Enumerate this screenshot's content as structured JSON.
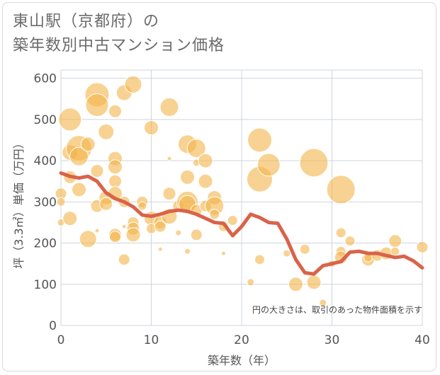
{
  "title": {
    "line1": "東山駅（京都府）の",
    "line2": "築年数別中古マンション価格"
  },
  "chart_data": {
    "type": "scatter",
    "xlabel": "築年数（年）",
    "ylabel": "坪（3.3㎡）単価（万円）",
    "xlim": [
      0,
      40
    ],
    "ylim": [
      0,
      620
    ],
    "x_ticks": [
      0,
      10,
      20,
      30,
      40
    ],
    "y_ticks": [
      0,
      100,
      200,
      300,
      400,
      500,
      600
    ],
    "grid": true,
    "note": "円の大きさは、取引のあった物件面積を示す",
    "colors": {
      "bubble": "#f3b44a",
      "trend": "#d9634a"
    },
    "points": [
      {
        "x": 0,
        "y": 320,
        "s": 8
      },
      {
        "x": 0,
        "y": 300,
        "s": 6
      },
      {
        "x": 0,
        "y": 250,
        "s": 5
      },
      {
        "x": 1,
        "y": 500,
        "s": 16
      },
      {
        "x": 1,
        "y": 420,
        "s": 11
      },
      {
        "x": 1,
        "y": 360,
        "s": 9
      },
      {
        "x": 1,
        "y": 260,
        "s": 10
      },
      {
        "x": 2,
        "y": 430,
        "s": 18
      },
      {
        "x": 2,
        "y": 410,
        "s": 13
      },
      {
        "x": 2,
        "y": 330,
        "s": 10
      },
      {
        "x": 3,
        "y": 440,
        "s": 10
      },
      {
        "x": 3,
        "y": 210,
        "s": 12
      },
      {
        "x": 4,
        "y": 560,
        "s": 17
      },
      {
        "x": 4,
        "y": 535,
        "s": 16
      },
      {
        "x": 4,
        "y": 375,
        "s": 9
      },
      {
        "x": 4,
        "y": 290,
        "s": 9
      },
      {
        "x": 4,
        "y": 230,
        "s": 3
      },
      {
        "x": 5,
        "y": 470,
        "s": 11
      },
      {
        "x": 5,
        "y": 310,
        "s": 10
      },
      {
        "x": 5,
        "y": 295,
        "s": 9
      },
      {
        "x": 6,
        "y": 520,
        "s": 9
      },
      {
        "x": 6,
        "y": 405,
        "s": 10
      },
      {
        "x": 6,
        "y": 385,
        "s": 10
      },
      {
        "x": 6,
        "y": 350,
        "s": 9
      },
      {
        "x": 6,
        "y": 320,
        "s": 10
      },
      {
        "x": 6,
        "y": 220,
        "s": 9
      },
      {
        "x": 6,
        "y": 215,
        "s": 8
      },
      {
        "x": 7,
        "y": 565,
        "s": 11
      },
      {
        "x": 7,
        "y": 300,
        "s": 8
      },
      {
        "x": 7,
        "y": 240,
        "s": 3
      },
      {
        "x": 7,
        "y": 160,
        "s": 8
      },
      {
        "x": 8,
        "y": 585,
        "s": 12
      },
      {
        "x": 8,
        "y": 250,
        "s": 8
      },
      {
        "x": 8,
        "y": 235,
        "s": 9
      },
      {
        "x": 8,
        "y": 220,
        "s": 10
      },
      {
        "x": 9,
        "y": 300,
        "s": 8
      },
      {
        "x": 9,
        "y": 290,
        "s": 6
      },
      {
        "x": 10,
        "y": 480,
        "s": 10
      },
      {
        "x": 10,
        "y": 260,
        "s": 10
      },
      {
        "x": 10,
        "y": 235,
        "s": 7
      },
      {
        "x": 11,
        "y": 250,
        "s": 9
      },
      {
        "x": 11,
        "y": 240,
        "s": 8
      },
      {
        "x": 11,
        "y": 185,
        "s": 3
      },
      {
        "x": 12,
        "y": 530,
        "s": 13
      },
      {
        "x": 12,
        "y": 320,
        "s": 9
      },
      {
        "x": 12,
        "y": 265,
        "s": 11
      },
      {
        "x": 12,
        "y": 405,
        "s": 3
      },
      {
        "x": 13,
        "y": 290,
        "s": 8
      },
      {
        "x": 13,
        "y": 225,
        "s": 4
      },
      {
        "x": 14,
        "y": 440,
        "s": 13
      },
      {
        "x": 14,
        "y": 360,
        "s": 10
      },
      {
        "x": 14,
        "y": 300,
        "s": 15
      },
      {
        "x": 14,
        "y": 295,
        "s": 12
      },
      {
        "x": 14,
        "y": 180,
        "s": 4
      },
      {
        "x": 15,
        "y": 430,
        "s": 13
      },
      {
        "x": 15,
        "y": 395,
        "s": 5
      },
      {
        "x": 15,
        "y": 280,
        "s": 8
      },
      {
        "x": 15,
        "y": 220,
        "s": 8
      },
      {
        "x": 16,
        "y": 400,
        "s": 10
      },
      {
        "x": 16,
        "y": 350,
        "s": 10
      },
      {
        "x": 16,
        "y": 290,
        "s": 8
      },
      {
        "x": 17,
        "y": 310,
        "s": 10
      },
      {
        "x": 17,
        "y": 290,
        "s": 13
      },
      {
        "x": 17,
        "y": 270,
        "s": 7
      },
      {
        "x": 18,
        "y": 240,
        "s": 7
      },
      {
        "x": 18,
        "y": 175,
        "s": 3
      },
      {
        "x": 19,
        "y": 255,
        "s": 7
      },
      {
        "x": 21,
        "y": 105,
        "s": 5
      },
      {
        "x": 22,
        "y": 450,
        "s": 17
      },
      {
        "x": 22,
        "y": 355,
        "s": 18
      },
      {
        "x": 22,
        "y": 160,
        "s": 7
      },
      {
        "x": 23,
        "y": 390,
        "s": 16
      },
      {
        "x": 25,
        "y": 175,
        "s": 5
      },
      {
        "x": 26,
        "y": 100,
        "s": 10
      },
      {
        "x": 27,
        "y": 185,
        "s": 7
      },
      {
        "x": 28,
        "y": 395,
        "s": 20
      },
      {
        "x": 28,
        "y": 105,
        "s": 10
      },
      {
        "x": 29,
        "y": 55,
        "s": 5
      },
      {
        "x": 30,
        "y": 150,
        "s": 5
      },
      {
        "x": 31,
        "y": 330,
        "s": 20
      },
      {
        "x": 31,
        "y": 225,
        "s": 7
      },
      {
        "x": 31,
        "y": 180,
        "s": 7
      },
      {
        "x": 31,
        "y": 165,
        "s": 9
      },
      {
        "x": 32,
        "y": 205,
        "s": 7
      },
      {
        "x": 34,
        "y": 160,
        "s": 9
      },
      {
        "x": 34,
        "y": 165,
        "s": 6
      },
      {
        "x": 35,
        "y": 170,
        "s": 8
      },
      {
        "x": 36,
        "y": 175,
        "s": 9
      },
      {
        "x": 37,
        "y": 205,
        "s": 9
      },
      {
        "x": 37,
        "y": 180,
        "s": 6
      },
      {
        "x": 40,
        "y": 190,
        "s": 8
      }
    ],
    "trend": {
      "x": [
        0,
        1,
        2,
        3,
        4,
        5,
        6,
        7,
        8,
        9,
        10,
        11,
        12,
        13,
        14,
        15,
        16,
        17,
        18,
        19,
        20,
        21,
        22,
        23,
        24,
        25,
        26,
        27,
        28,
        29,
        30,
        31,
        32,
        33,
        34,
        35,
        36,
        37,
        38,
        39,
        40
      ],
      "y": [
        370,
        362,
        358,
        362,
        350,
        322,
        308,
        300,
        288,
        268,
        265,
        270,
        277,
        280,
        277,
        270,
        260,
        250,
        248,
        218,
        240,
        270,
        262,
        250,
        248,
        210,
        160,
        128,
        125,
        145,
        150,
        155,
        178,
        180,
        175,
        175,
        170,
        165,
        168,
        157,
        140
      ]
    }
  }
}
